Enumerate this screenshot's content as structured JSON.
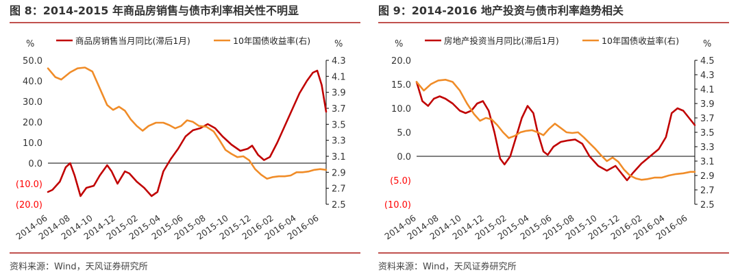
{
  "colors": {
    "rule": "#c0504d",
    "series_left": "#c00000",
    "series_right": "#f08c28",
    "negative_tick": "#ff0000",
    "tick": "#333333"
  },
  "panels": [
    {
      "title": "图 8：2014-2015 年商品房销售与债市利率相关性不明显",
      "source": "资料来源：Wind，天风证券研究所"
    },
    {
      "title": "图 9：2014-2016 地产投资与债市利率趋势相关",
      "source": "资料来源：Wind，天风证券研究所"
    }
  ],
  "chart_data": [
    {
      "type": "line",
      "left_unit": "%",
      "right_unit": "%",
      "x_ticks": [
        "2014-06",
        "2014-08",
        "2014-10",
        "2014-12",
        "2015-02",
        "2015-04",
        "2015-06",
        "2015-08",
        "2015-10",
        "2015-12",
        "2016-02",
        "2016-04",
        "2016-06"
      ],
      "y_left": {
        "lim": [
          -20,
          50
        ],
        "ticks": [
          "(20.0)",
          "(10.0)",
          "0.0",
          "10.0",
          "20.0",
          "30.0",
          "40.0",
          "50.0"
        ],
        "values": [
          -20,
          -10,
          0,
          10,
          20,
          30,
          40,
          50
        ]
      },
      "y_right": {
        "lim": [
          2.5,
          4.3
        ],
        "ticks": [
          "2.5",
          "2.7",
          "2.9",
          "3.1",
          "3.3",
          "3.5",
          "3.7",
          "3.9",
          "4.1",
          "4.3"
        ],
        "values": [
          2.5,
          2.7,
          2.9,
          3.1,
          3.3,
          3.5,
          3.7,
          3.9,
          4.1,
          4.3
        ]
      },
      "legend": "top",
      "series": [
        {
          "name": "商品房销售当月同比(滞后1月)",
          "axis": "left",
          "points": [
            [
              0,
              -14
            ],
            [
              0.3,
              -13
            ],
            [
              0.8,
              -9
            ],
            [
              1.2,
              -2
            ],
            [
              1.5,
              0
            ],
            [
              1.8,
              -6
            ],
            [
              2.2,
              -16
            ],
            [
              2.6,
              -12
            ],
            [
              3.1,
              -11
            ],
            [
              3.5,
              -6
            ],
            [
              4.0,
              -1
            ],
            [
              4.3,
              -4
            ],
            [
              4.7,
              -10
            ],
            [
              5.2,
              -4
            ],
            [
              5.5,
              -5
            ],
            [
              6.0,
              -9
            ],
            [
              6.5,
              -12
            ],
            [
              7.0,
              -16
            ],
            [
              7.4,
              -14
            ],
            [
              7.8,
              -4
            ],
            [
              8.3,
              2
            ],
            [
              8.8,
              7
            ],
            [
              9.3,
              13
            ],
            [
              9.8,
              16
            ],
            [
              10.3,
              17
            ],
            [
              10.8,
              19
            ],
            [
              11.3,
              17
            ],
            [
              11.8,
              13
            ],
            [
              12.4,
              9
            ],
            [
              13.0,
              6
            ],
            [
              13.5,
              7
            ],
            [
              13.8,
              8.5
            ],
            [
              14.2,
              4
            ],
            [
              14.6,
              1.5
            ],
            [
              15.0,
              3
            ],
            [
              15.5,
              10
            ],
            [
              16.0,
              18
            ],
            [
              16.5,
              26
            ],
            [
              17.0,
              34
            ],
            [
              17.5,
              40
            ],
            [
              17.9,
              44
            ],
            [
              18.2,
              45
            ],
            [
              18.5,
              38
            ],
            [
              18.8,
              25
            ]
          ]
        },
        {
          "name": "10年国债收益率(右)",
          "axis": "right",
          "points": [
            [
              0,
              4.2
            ],
            [
              0.5,
              4.09
            ],
            [
              0.9,
              4.06
            ],
            [
              1.5,
              4.15
            ],
            [
              2.0,
              4.2
            ],
            [
              2.5,
              4.21
            ],
            [
              3.0,
              4.16
            ],
            [
              3.5,
              3.95
            ],
            [
              4.0,
              3.74
            ],
            [
              4.4,
              3.68
            ],
            [
              4.8,
              3.72
            ],
            [
              5.2,
              3.67
            ],
            [
              5.6,
              3.56
            ],
            [
              6.0,
              3.48
            ],
            [
              6.4,
              3.42
            ],
            [
              6.8,
              3.48
            ],
            [
              7.3,
              3.52
            ],
            [
              7.8,
              3.52
            ],
            [
              8.2,
              3.49
            ],
            [
              8.6,
              3.45
            ],
            [
              9.0,
              3.48
            ],
            [
              9.4,
              3.55
            ],
            [
              9.8,
              3.53
            ],
            [
              10.2,
              3.48
            ],
            [
              10.7,
              3.47
            ],
            [
              11.2,
              3.41
            ],
            [
              11.6,
              3.3
            ],
            [
              12.0,
              3.18
            ],
            [
              12.4,
              3.13
            ],
            [
              12.8,
              3.09
            ],
            [
              13.2,
              3.1
            ],
            [
              13.6,
              3.05
            ],
            [
              14.0,
              2.94
            ],
            [
              14.4,
              2.87
            ],
            [
              14.8,
              2.82
            ],
            [
              15.2,
              2.84
            ],
            [
              15.6,
              2.85
            ],
            [
              16.0,
              2.85
            ],
            [
              16.4,
              2.86
            ],
            [
              16.8,
              2.9
            ],
            [
              17.2,
              2.9
            ],
            [
              17.6,
              2.91
            ],
            [
              18.0,
              2.93
            ],
            [
              18.4,
              2.94
            ],
            [
              18.8,
              2.93
            ]
          ]
        }
      ]
    },
    {
      "type": "line",
      "left_unit": "%",
      "right_unit": "%",
      "x_ticks": [
        "2014-06",
        "2014-08",
        "2014-10",
        "2014-12",
        "2015-02",
        "2015-04",
        "2015-06",
        "2015-08",
        "2015-10",
        "2015-12",
        "2016-02",
        "2016-04",
        "2016-06"
      ],
      "y_left": {
        "lim": [
          -10,
          20
        ],
        "ticks": [
          "(10.0)",
          "(5.0)",
          "0.0",
          "5.0",
          "10.0",
          "15.0",
          "20.0"
        ],
        "values": [
          -10,
          -5,
          0,
          5,
          10,
          15,
          20
        ]
      },
      "y_right": {
        "lim": [
          2.5,
          4.5
        ],
        "ticks": [
          "2.5",
          "2.7",
          "2.9",
          "3.1",
          "3.3",
          "3.5",
          "3.7",
          "3.9",
          "4.1",
          "4.3",
          "4.5"
        ],
        "values": [
          2.5,
          2.7,
          2.9,
          3.1,
          3.3,
          3.5,
          3.7,
          3.9,
          4.1,
          4.3,
          4.5
        ]
      },
      "legend": "top",
      "series": [
        {
          "name": "房地产投资当月同比(滞后1月)",
          "axis": "left",
          "points": [
            [
              0,
              15.5
            ],
            [
              0.4,
              11.5
            ],
            [
              0.8,
              10.5
            ],
            [
              1.2,
              12
            ],
            [
              1.6,
              12.5
            ],
            [
              2.0,
              12
            ],
            [
              2.5,
              11
            ],
            [
              3.0,
              9.5
            ],
            [
              3.4,
              9
            ],
            [
              3.8,
              9.5
            ],
            [
              4.2,
              11
            ],
            [
              4.6,
              11.5
            ],
            [
              5.0,
              9.5
            ],
            [
              5.4,
              5
            ],
            [
              5.8,
              -0.5
            ],
            [
              6.1,
              -1.7
            ],
            [
              6.5,
              0
            ],
            [
              6.9,
              4
            ],
            [
              7.3,
              8
            ],
            [
              7.7,
              10.5
            ],
            [
              8.1,
              9
            ],
            [
              8.4,
              5
            ],
            [
              8.8,
              1
            ],
            [
              9.1,
              0.3
            ],
            [
              9.5,
              2
            ],
            [
              10.0,
              3
            ],
            [
              10.5,
              3.3
            ],
            [
              11.0,
              3.5
            ],
            [
              11.5,
              2.6
            ],
            [
              12.0,
              0
            ],
            [
              12.6,
              -2
            ],
            [
              13.2,
              -3
            ],
            [
              13.8,
              -2
            ],
            [
              14.2,
              -3.5
            ],
            [
              14.6,
              -5
            ],
            [
              15.0,
              -3.5
            ],
            [
              15.6,
              -1.5
            ],
            [
              16.2,
              0
            ],
            [
              16.8,
              1.5
            ],
            [
              17.3,
              4
            ],
            [
              17.7,
              9
            ],
            [
              18.1,
              10
            ],
            [
              18.5,
              9.5
            ],
            [
              18.9,
              8
            ],
            [
              19.3,
              6.5
            ]
          ]
        },
        {
          "name": "10年国债收益率(右)",
          "axis": "right",
          "points": [
            [
              0,
              4.2
            ],
            [
              0.5,
              4.08
            ],
            [
              1.0,
              4.17
            ],
            [
              1.5,
              4.22
            ],
            [
              2.0,
              4.23
            ],
            [
              2.5,
              4.2
            ],
            [
              3.0,
              4.08
            ],
            [
              3.5,
              3.9
            ],
            [
              4.0,
              3.75
            ],
            [
              4.4,
              3.66
            ],
            [
              4.8,
              3.7
            ],
            [
              5.2,
              3.68
            ],
            [
              5.6,
              3.6
            ],
            [
              6.0,
              3.5
            ],
            [
              6.4,
              3.42
            ],
            [
              6.8,
              3.45
            ],
            [
              7.2,
              3.5
            ],
            [
              7.6,
              3.52
            ],
            [
              8.0,
              3.53
            ],
            [
              8.4,
              3.5
            ],
            [
              8.8,
              3.46
            ],
            [
              9.2,
              3.55
            ],
            [
              9.6,
              3.62
            ],
            [
              10.0,
              3.56
            ],
            [
              10.4,
              3.5
            ],
            [
              10.8,
              3.49
            ],
            [
              11.2,
              3.5
            ],
            [
              11.6,
              3.43
            ],
            [
              12.0,
              3.35
            ],
            [
              12.4,
              3.27
            ],
            [
              12.8,
              3.18
            ],
            [
              13.2,
              3.1
            ],
            [
              13.6,
              3.15
            ],
            [
              14.0,
              3.09
            ],
            [
              14.4,
              2.98
            ],
            [
              14.8,
              2.9
            ],
            [
              15.2,
              2.86
            ],
            [
              15.6,
              2.84
            ],
            [
              16.0,
              2.85
            ],
            [
              16.5,
              2.87
            ],
            [
              17.0,
              2.87
            ],
            [
              17.5,
              2.9
            ],
            [
              18.0,
              2.92
            ],
            [
              18.5,
              2.93
            ],
            [
              19.0,
              2.95
            ],
            [
              19.3,
              2.95
            ]
          ]
        }
      ]
    }
  ]
}
